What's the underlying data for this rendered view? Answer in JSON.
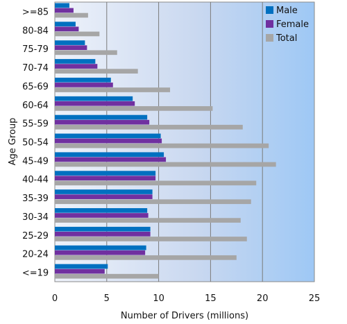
{
  "chart_data": {
    "type": "bar",
    "orientation": "horizontal",
    "xlabel": "Number of Drivers (millions)",
    "ylabel": "Age Group",
    "xlim": [
      0,
      25
    ],
    "xticks": [
      0,
      5,
      10,
      15,
      20,
      25
    ],
    "grid": "vertical",
    "legend_position": "top-right",
    "categories": [
      ">=85",
      "80-84",
      "75-79",
      "70-74",
      "65-69",
      "60-64",
      "55-59",
      "50-54",
      "45-49",
      "40-44",
      "35-39",
      "30-34",
      "25-29",
      "20-24",
      "<=19"
    ],
    "series": [
      {
        "name": "Male",
        "color": "#0070c0",
        "values": [
          1.4,
          2.0,
          2.9,
          3.9,
          5.4,
          7.5,
          8.9,
          10.2,
          10.5,
          9.7,
          9.4,
          8.9,
          9.2,
          8.8,
          5.1
        ]
      },
      {
        "name": "Female",
        "color": "#7030a0",
        "values": [
          1.8,
          2.3,
          3.1,
          4.1,
          5.6,
          7.7,
          9.1,
          10.3,
          10.7,
          9.7,
          9.4,
          9.0,
          9.2,
          8.7,
          4.8
        ]
      },
      {
        "name": "Total",
        "color": "#a6a6a6",
        "values": [
          3.2,
          4.3,
          6.0,
          8.0,
          11.1,
          15.2,
          18.1,
          20.6,
          21.3,
          19.4,
          18.9,
          17.9,
          18.5,
          17.5,
          10.0
        ]
      }
    ]
  }
}
